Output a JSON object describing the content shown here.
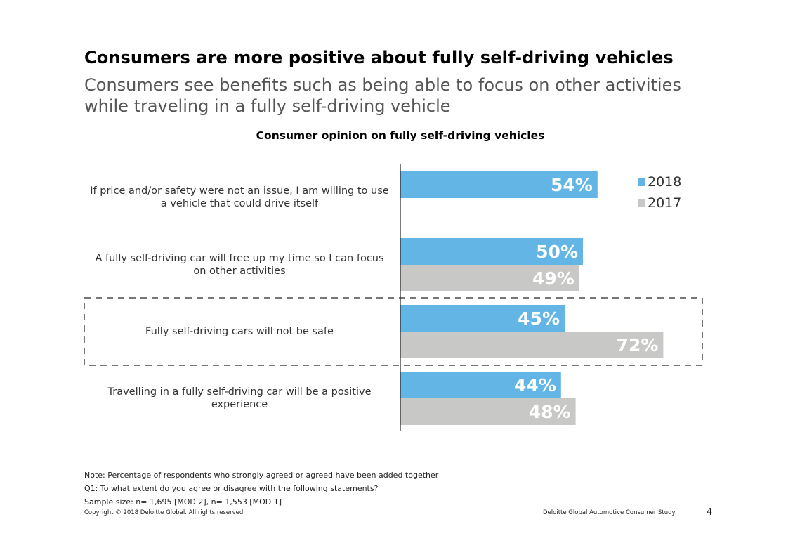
{
  "slide": {
    "title": "Consumers are more positive about fully self-driving vehicles",
    "subtitle": "Consumers see benefits such as being able to focus on other activities while traveling in a fully self-driving vehicle"
  },
  "chart_data": {
    "type": "bar",
    "orientation": "horizontal",
    "title": "Consumer opinion on fully self-driving vehicles",
    "categories": [
      "If price and/or safety were not an issue, I am willing to use a vehicle that could drive itself",
      "A fully self-driving car will free up my time so I can focus on other activities",
      "Fully self-driving cars will not be safe",
      "Travelling in a fully self-driving car will be a positive experience"
    ],
    "series": [
      {
        "name": "2018",
        "color": "#62b5e5",
        "values": [
          54,
          50,
          45,
          44
        ],
        "labels": [
          "54%",
          "50%",
          "45%",
          "44%"
        ]
      },
      {
        "name": "2017",
        "color": "#c8c9c7",
        "values": [
          null,
          49,
          72,
          48
        ],
        "labels": [
          null,
          "49%",
          "72%",
          "48%"
        ]
      }
    ],
    "highlighted_category": "Fully self-driving cars will not be safe",
    "xlim": [
      0,
      80
    ],
    "legend_position": "top-right",
    "grid": false
  },
  "notes": [
    "Note: Percentage of respondents who strongly agreed or agreed have been added together",
    "Q1: To what extent do you agree or disagree with the following statements?",
    "Sample size: n= 1,695 [MOD 2], n= 1,553 [MOD 1]"
  ],
  "footer": {
    "copyright": "Copyright © 2018 Deloitte Global. All rights reserved.",
    "study": "Deloitte Global Automotive Consumer Study",
    "page": "4"
  }
}
